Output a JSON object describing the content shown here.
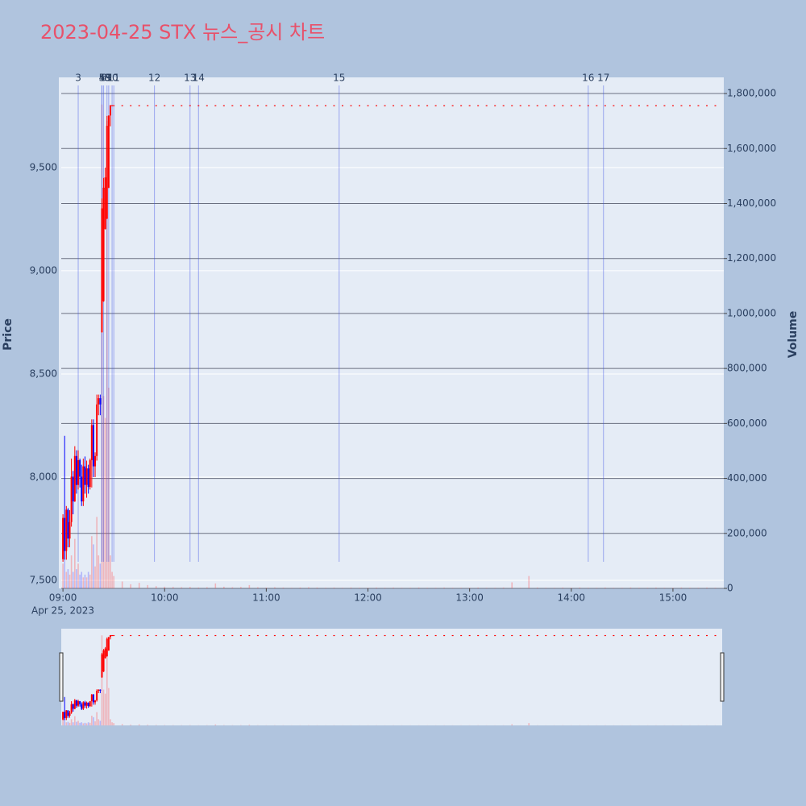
{
  "chart_data": {
    "type": "candlestick",
    "title": "2023-04-25 STX 뉴스_공시 차트",
    "y_axis_label": "Price",
    "y2_axis_label": "Volume",
    "x_date_label": "Apr 25, 2023",
    "increasing_color": "#ff0000",
    "decreasing_color": "#0000ff",
    "xlim": [
      "08:59",
      "15:30"
    ],
    "xticks": [
      "09:00",
      "10:00",
      "11:00",
      "12:00",
      "13:00",
      "14:00",
      "15:00"
    ],
    "ylim": [
      7461,
      9937
    ],
    "yticks": [
      {
        "value": 7500,
        "label": "7,500"
      },
      {
        "value": 8000,
        "label": "8,000"
      },
      {
        "value": 8500,
        "label": "8,500"
      },
      {
        "value": 9000,
        "label": "9,000"
      },
      {
        "value": 9500,
        "label": "9,500"
      }
    ],
    "y2lim": [
      0,
      1858800
    ],
    "y2ticks": [
      0,
      {
        "value": 200000,
        "label": "200,000"
      },
      {
        "value": 400000,
        "label": "400,000"
      },
      {
        "value": 600000,
        "label": "600,000"
      },
      {
        "value": 800000,
        "label": "800,000"
      },
      {
        "value": 1000000,
        "label": "1,000,000"
      },
      {
        "value": 1200000,
        "label": "1,200,000"
      },
      {
        "value": 1400000,
        "label": "1,400,000"
      },
      {
        "value": 1600000,
        "label": "1,600,000"
      },
      {
        "value": 1800000,
        "label": "1,800,000"
      }
    ],
    "x": [
      "09:00",
      "09:01",
      "09:02",
      "09:03",
      "09:04",
      "09:05",
      "09:06",
      "09:07",
      "09:08",
      "09:09",
      "09:10",
      "09:11",
      "09:12",
      "09:13",
      "09:14",
      "09:15",
      "09:16",
      "09:17",
      "09:18",
      "09:19",
      "09:20",
      "09:21",
      "09:22",
      "09:23",
      "09:24",
      "09:25",
      "09:26",
      "09:27",
      "09:28",
      "09:29",
      "09:30",
      "09:35",
      "09:40",
      "09:45",
      "09:50",
      "09:55",
      "10:00",
      "10:05",
      "10:10",
      "10:15",
      "10:20",
      "10:25",
      "10:30",
      "10:35",
      "10:40",
      "10:45",
      "10:50",
      "10:55",
      "11:00",
      "11:05",
      "11:10",
      "11:15",
      "11:20",
      "11:25",
      "11:30",
      "11:35",
      "11:40",
      "11:45",
      "11:50",
      "11:55",
      "12:00",
      "12:05",
      "12:10",
      "12:15",
      "12:20",
      "12:25",
      "12:30",
      "12:35",
      "12:40",
      "12:45",
      "12:50",
      "12:55",
      "13:00",
      "13:05",
      "13:10",
      "13:15",
      "13:20",
      "13:25",
      "13:30",
      "13:35",
      "13:40",
      "13:45",
      "13:50",
      "13:55",
      "14:00",
      "14:05",
      "14:10",
      "14:15",
      "14:20",
      "14:25",
      "14:30",
      "14:35",
      "14:40",
      "14:45",
      "14:50",
      "14:55",
      "15:00",
      "15:05",
      "15:10",
      "15:15",
      "15:20",
      "15:25"
    ],
    "open": [
      7600,
      7800,
      7640,
      7840,
      7700,
      7780,
      8000,
      7880,
      8100,
      7960,
      8080,
      8000,
      7880,
      8050,
      7960,
      8040,
      7950,
      8080,
      8250,
      8050,
      8100,
      8350,
      8380,
      8700,
      8850,
      9200,
      9250,
      9400,
      9750,
      9800,
      9800,
      9800,
      9800,
      9800,
      9800,
      9800,
      9800,
      9800,
      9800,
      9800,
      9800,
      9800,
      9800,
      9800,
      9800,
      9800,
      9800,
      9800,
      9800,
      9800,
      9800,
      9800,
      9800,
      9800,
      9800,
      9800,
      9800,
      9800,
      9800,
      9800,
      9800,
      9800,
      9800,
      9800,
      9800,
      9800,
      9800,
      9800,
      9800,
      9800,
      9800,
      9800,
      9800,
      9800,
      9800,
      9800,
      9800,
      9800,
      9800,
      9800,
      9800,
      9800,
      9800,
      9800,
      9800,
      9800,
      9800,
      9800,
      9800,
      9800,
      9800,
      9800,
      9800,
      9800,
      9800,
      9800,
      9800,
      9800,
      9800,
      9800,
      9800,
      9800
    ],
    "high": [
      7820,
      8200,
      7860,
      7850,
      7840,
      8090,
      8030,
      8150,
      8130,
      8130,
      8090,
      8060,
      8090,
      8100,
      8080,
      8060,
      8090,
      8280,
      8280,
      8120,
      8400,
      8400,
      8400,
      9350,
      9450,
      9500,
      9750,
      9750,
      9800,
      9800,
      9800,
      9800,
      9800,
      9800,
      9800,
      9800,
      9800,
      9800,
      9800,
      9800,
      9800,
      9800,
      9800,
      9800,
      9800,
      9800,
      9800,
      9800,
      9800,
      9800,
      9800,
      9800,
      9800,
      9800,
      9800,
      9800,
      9800,
      9800,
      9800,
      9800,
      9800,
      9800,
      9800,
      9800,
      9800,
      9800,
      9800,
      9800,
      9800,
      9800,
      9800,
      9800,
      9800,
      9800,
      9800,
      9800,
      9800,
      9800,
      9800,
      9800,
      9800,
      9800,
      9800,
      9800,
      9800,
      9800,
      9800,
      9800,
      9800,
      9800,
      9800,
      9800,
      9800,
      9800,
      9800,
      9800,
      9800,
      9800,
      9800,
      9800,
      9800,
      9800
    ],
    "low": [
      7590,
      7600,
      7600,
      7660,
      7660,
      7760,
      7820,
      7880,
      7920,
      7940,
      7950,
      7860,
      7860,
      7920,
      7900,
      7920,
      7940,
      7950,
      8000,
      8000,
      8080,
      8300,
      8300,
      8700,
      8850,
      9200,
      9250,
      9400,
      9700,
      9800,
      9800,
      9800,
      9800,
      9800,
      9800,
      9800,
      9800,
      9800,
      9800,
      9800,
      9800,
      9800,
      9800,
      9800,
      9800,
      9800,
      9800,
      9800,
      9800,
      9800,
      9800,
      9800,
      9800,
      9800,
      9800,
      9800,
      9800,
      9800,
      9800,
      9800,
      9800,
      9800,
      9800,
      9800,
      9800,
      9800,
      9800,
      9800,
      9800,
      9800,
      9800,
      9800,
      9800,
      9800,
      9800,
      9800,
      9800,
      9800,
      9800,
      9800,
      9800,
      9800,
      9800,
      9800,
      9800,
      9800,
      9800,
      9800,
      9800,
      9800,
      9800,
      9800,
      9800,
      9800,
      9800,
      9800,
      9800,
      9800,
      9800,
      9800,
      9800,
      9800
    ],
    "close": [
      7800,
      7640,
      7840,
      7700,
      7780,
      8000,
      7880,
      8100,
      7960,
      8080,
      8000,
      7880,
      8050,
      7960,
      8040,
      7950,
      8080,
      8250,
      8050,
      8100,
      8350,
      8380,
      8350,
      9300,
      9400,
      9450,
      9700,
      9750,
      9800,
      9800,
      9800,
      9800,
      9800,
      9800,
      9800,
      9800,
      9800,
      9800,
      9800,
      9800,
      9800,
      9800,
      9800,
      9800,
      9800,
      9800,
      9800,
      9800,
      9800,
      9800,
      9800,
      9800,
      9800,
      9800,
      9800,
      9800,
      9800,
      9800,
      9800,
      9800,
      9800,
      9800,
      9800,
      9800,
      9800,
      9800,
      9800,
      9800,
      9800,
      9800,
      9800,
      9800,
      9800,
      9800,
      9800,
      9800,
      9800,
      9800,
      9800,
      9800,
      9800,
      9800,
      9800,
      9800,
      9800,
      9800,
      9800,
      9800,
      9800,
      9800,
      9800,
      9800,
      9800,
      9800,
      9800,
      9800,
      9800,
      9800,
      9800,
      9800,
      9800,
      9800
    ],
    "volume": [
      90000,
      150000,
      60000,
      70000,
      50000,
      120000,
      60000,
      180000,
      70000,
      90000,
      50000,
      60000,
      40000,
      50000,
      40000,
      60000,
      50000,
      190000,
      160000,
      80000,
      260000,
      120000,
      90000,
      1760000,
      700000,
      620000,
      1700000,
      730000,
      120000,
      60000,
      45000,
      25000,
      15000,
      20000,
      12000,
      8000,
      6000,
      5000,
      4000,
      5000,
      3000,
      4000,
      18000,
      6000,
      4000,
      5000,
      12000,
      4000,
      3000,
      4000,
      3000,
      2000,
      3000,
      4000,
      3000,
      2000,
      3000,
      2000,
      3000,
      2000,
      2000,
      3000,
      2000,
      3000,
      2000,
      2000,
      3000,
      2000,
      2000,
      3000,
      2000,
      2000,
      2000,
      3000,
      2000,
      2000,
      3000,
      22000,
      2000,
      45000,
      3000,
      2000,
      2000,
      3000,
      2000,
      3000,
      2000,
      2000,
      3000,
      2000,
      2000,
      3000,
      2000,
      2000,
      3000,
      2000,
      2000,
      3000,
      2000,
      2000,
      3000,
      2000
    ],
    "events": [
      {
        "label": "3",
        "x": "09:09"
      },
      {
        "label": "4",
        "x": "09:23"
      },
      {
        "label": "5",
        "x": "09:23"
      },
      {
        "label": "6",
        "x": "09:24"
      },
      {
        "label": "8",
        "x": "09:26"
      },
      {
        "label": "9",
        "x": "09:27"
      },
      {
        "label": "10",
        "x": "09:29"
      },
      {
        "label": "11",
        "x": "09:30"
      },
      {
        "label": "12",
        "x": "09:54"
      },
      {
        "label": "13",
        "x": "10:15"
      },
      {
        "label": "14",
        "x": "10:20"
      },
      {
        "label": "15",
        "x": "11:43"
      },
      {
        "label": "16",
        "x": "14:10"
      },
      {
        "label": "17",
        "x": "14:19"
      }
    ]
  }
}
